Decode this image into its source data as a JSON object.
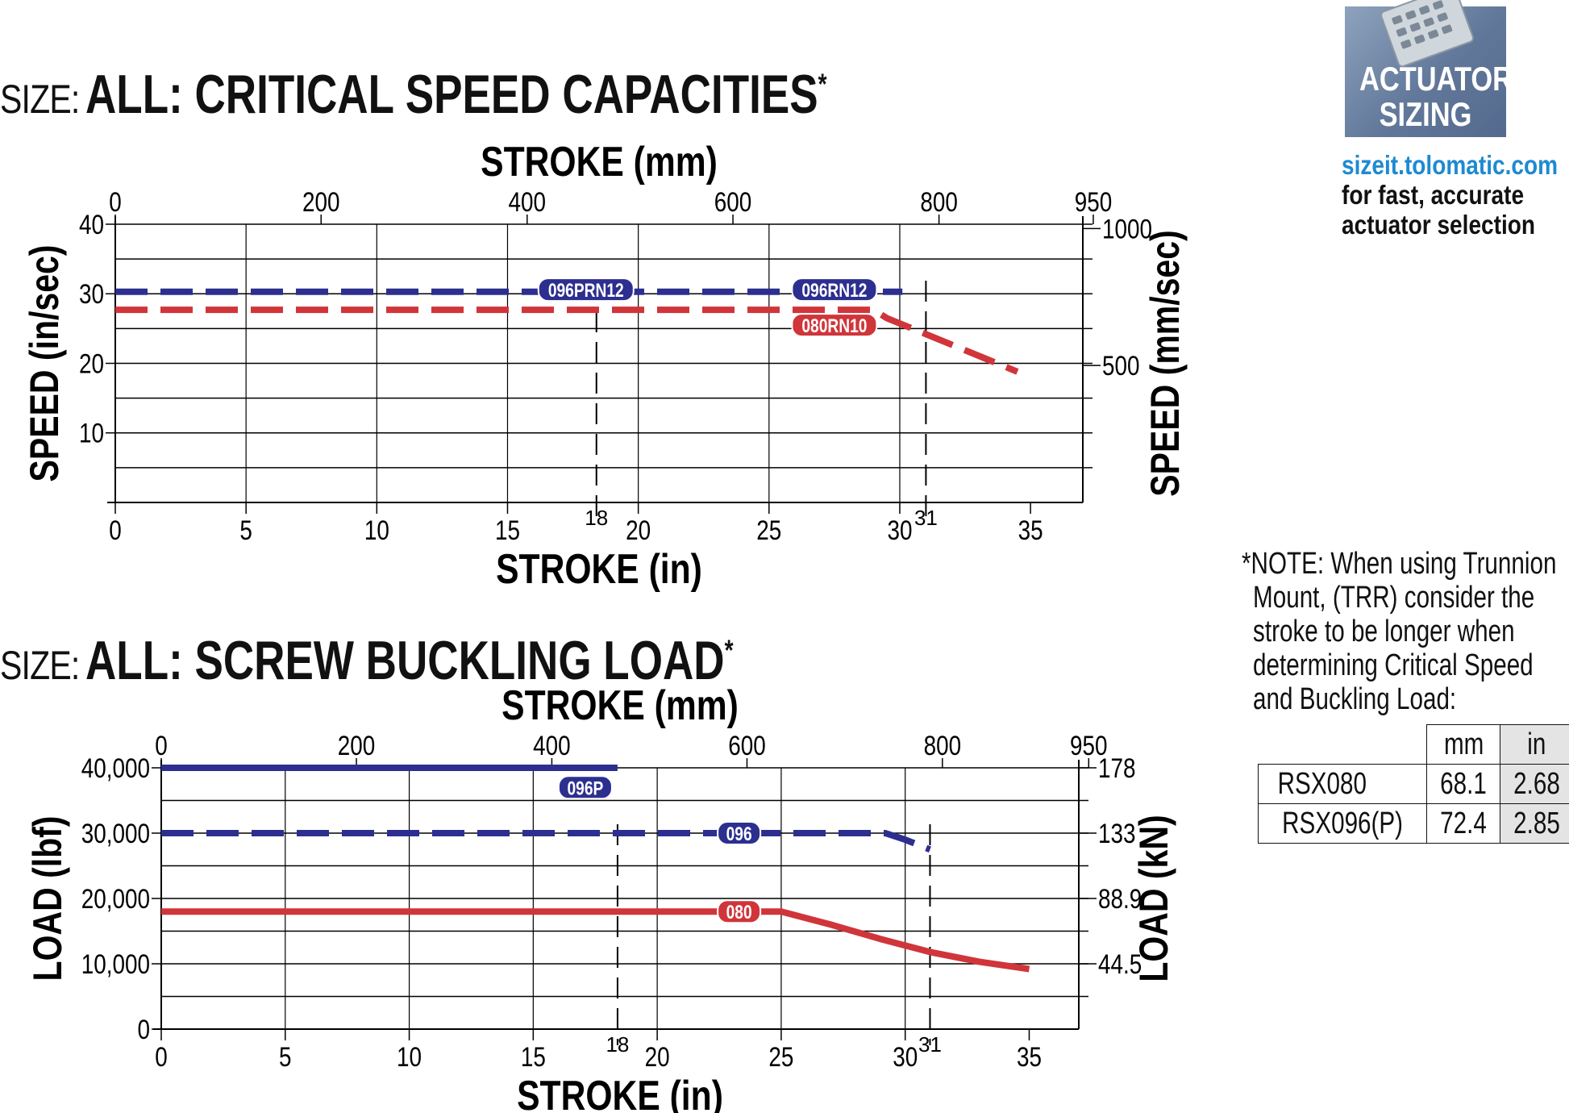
{
  "titles": {
    "speed": {
      "prefix": "SIZE:",
      "main": "ALL: CRITICAL SPEED CAPACITIES",
      "mark": "*"
    },
    "load": {
      "prefix": "SIZE:",
      "main": "ALL: SCREW BUCKLING LOAD",
      "mark": "*"
    }
  },
  "sidebar": {
    "badge_line1": "ACTUATOR",
    "badge_line2": "SIZING",
    "url": "sizeit.tolomatic.com",
    "tagline1": "for fast, accurate",
    "tagline2": "actuator selection"
  },
  "note": {
    "lines": [
      "*NOTE: When using Trunnion",
      "Mount, (TRR) consider the",
      "stroke to be longer when",
      "determining Critical Speed",
      "and Buckling Load:"
    ],
    "table": {
      "headers": [
        "mm",
        "in"
      ],
      "rows": [
        {
          "model": "RSX080",
          "mm": "68.1",
          "in": "2.68"
        },
        {
          "model": "RSX096(P)",
          "mm": "72.4",
          "in": "2.85"
        }
      ]
    }
  },
  "colors": {
    "blue": "#2c2f8f",
    "red": "#d0353a",
    "grid": "#000000"
  },
  "chart_data": [
    {
      "type": "line",
      "title": "ALL: CRITICAL SPEED CAPACITIES",
      "xlabel": "STROKE (in)",
      "x2label": "STROKE (mm)",
      "ylabel": "SPEED (in/sec)",
      "y2label": "SPEED (mm/sec)",
      "xlim": [
        0,
        37
      ],
      "ylim": [
        0,
        40
      ],
      "x_ticks": [
        0,
        5,
        10,
        15,
        20,
        25,
        30,
        35
      ],
      "x_gridlines": [
        5,
        10,
        15,
        20,
        25,
        30
      ],
      "y_ticks": [
        10,
        20,
        30,
        40
      ],
      "y_gridlines": [
        5,
        10,
        15,
        20,
        25,
        30,
        35,
        40
      ],
      "x2_ticks": [
        {
          "label": "0",
          "x": 0
        },
        {
          "label": "200",
          "x": 7.87
        },
        {
          "label": "400",
          "x": 15.75
        },
        {
          "label": "600",
          "x": 23.62
        },
        {
          "label": "800",
          "x": 31.5
        },
        {
          "label": "950",
          "x": 37.4
        }
      ],
      "y2_ticks": [
        {
          "label": "1000",
          "y": 39.37
        },
        {
          "label": "500",
          "y": 19.69
        }
      ],
      "marker_lines": [
        {
          "x": 18.4,
          "label": "18"
        },
        {
          "x": 31,
          "label": "31"
        }
      ],
      "series": [
        {
          "name": "096PRN12",
          "color": "blue",
          "dash": true,
          "points": [
            [
              0,
              30.3
            ],
            [
              30.1,
              30.3
            ]
          ],
          "label_at": [
            18,
            30.6
          ]
        },
        {
          "name": "096RN12",
          "color": "blue",
          "dash": false,
          "hidden": true,
          "points": [],
          "label_at": [
            27.5,
            30.6
          ]
        },
        {
          "name": "080RN10",
          "color": "red",
          "dash": true,
          "points": [
            [
              0,
              27.7
            ],
            [
              29,
              27.7
            ],
            [
              29.5,
              26.5
            ],
            [
              31,
              24.2
            ],
            [
              34.5,
              18.8
            ]
          ],
          "label_at": [
            27.5,
            25.5
          ]
        }
      ]
    },
    {
      "type": "line",
      "title": "ALL: SCREW BUCKLING LOAD",
      "xlabel": "STROKE (in)",
      "x2label": "STROKE (mm)",
      "ylabel": "LOAD (lbf)",
      "y2label": "LOAD (kN)",
      "xlim": [
        0,
        37
      ],
      "ylim": [
        0,
        40000
      ],
      "x_ticks": [
        0,
        5,
        10,
        15,
        20,
        25,
        30,
        35
      ],
      "x_gridlines": [
        5,
        10,
        15,
        20,
        25,
        30
      ],
      "y_ticks": [
        {
          "v": 0,
          "label": "0"
        },
        {
          "v": 10000,
          "label": "10,000"
        },
        {
          "v": 20000,
          "label": "20,000"
        },
        {
          "v": 30000,
          "label": "30,000"
        },
        {
          "v": 40000,
          "label": "40,000"
        }
      ],
      "y_gridlines": [
        5000,
        10000,
        15000,
        20000,
        25000,
        30000,
        35000,
        40000
      ],
      "x2_ticks": [
        {
          "label": "0",
          "x": 0
        },
        {
          "label": "200",
          "x": 7.87
        },
        {
          "label": "400",
          "x": 15.75
        },
        {
          "label": "600",
          "x": 23.62
        },
        {
          "label": "800",
          "x": 31.5
        },
        {
          "label": "950",
          "x": 37.4
        }
      ],
      "y2_ticks": [
        {
          "label": "178",
          "y": 40000
        },
        {
          "label": "133",
          "y": 30000
        },
        {
          "label": "88.9",
          "y": 20000
        },
        {
          "label": "44.5",
          "y": 10000
        }
      ],
      "marker_lines": [
        {
          "x": 18.4,
          "label": "18"
        },
        {
          "x": 31,
          "label": "31"
        }
      ],
      "series": [
        {
          "name": "096P",
          "color": "blue",
          "dash": false,
          "points": [
            [
              0,
              40000
            ],
            [
              18.4,
              40000
            ]
          ],
          "label_at": [
            17.1,
            37000
          ]
        },
        {
          "name": "096",
          "color": "blue",
          "dash": true,
          "points": [
            [
              0,
              30000
            ],
            [
              29.2,
              30000
            ],
            [
              30,
              29000
            ],
            [
              31,
              27500
            ]
          ],
          "label_at": [
            23.3,
            30000
          ]
        },
        {
          "name": "080",
          "color": "red",
          "dash": false,
          "points": [
            [
              0,
              18000
            ],
            [
              25,
              18000
            ],
            [
              27,
              16000
            ],
            [
              29,
              13800
            ],
            [
              31,
              11800
            ],
            [
              33,
              10300
            ],
            [
              35,
              9200
            ]
          ],
          "label_at": [
            23.3,
            18000
          ]
        }
      ]
    }
  ]
}
